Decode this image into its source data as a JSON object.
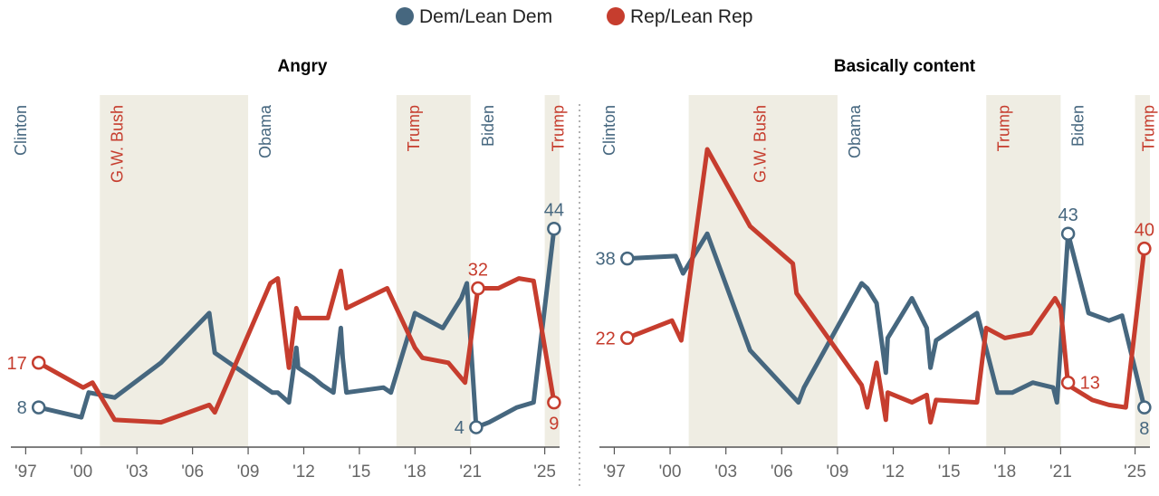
{
  "legend": [
    {
      "name": "Dem/Lean Dem",
      "color": "#46677f"
    },
    {
      "name": "Rep/Lean Rep",
      "color": "#c63d2e"
    }
  ],
  "colors": {
    "dem": "#46677f",
    "rep": "#c63d2e",
    "shade": "#efede3",
    "axis": "#555555",
    "tick_text": "#666666",
    "divider": "#999999"
  },
  "chart_data": [
    {
      "type": "line",
      "title": "Angry",
      "xlabel": "",
      "ylabel": "",
      "xlim": [
        1996.2,
        2025.8
      ],
      "ylim": [
        0,
        60
      ],
      "x_ticks": [
        1997,
        2000,
        2003,
        2006,
        2009,
        2012,
        2015,
        2018,
        2021,
        2025
      ],
      "x_tick_labels": [
        "'97",
        "'00",
        "'03",
        "'06",
        "'09",
        "'12",
        "'15",
        "'18",
        "'21",
        "'25"
      ],
      "shaded_eras": [
        [
          2001,
          2009
        ],
        [
          2017,
          2021
        ],
        [
          2025,
          2025.8
        ]
      ],
      "era_labels": [
        {
          "label": "Clinton",
          "party": "dem",
          "x": 1996.4
        },
        {
          "label": "G.W. Bush",
          "party": "rep",
          "x": 2001.6
        },
        {
          "label": "Obama",
          "party": "dem",
          "x": 2009.6
        },
        {
          "label": "Trump",
          "party": "rep",
          "x": 2017.6
        },
        {
          "label": "Biden",
          "party": "dem",
          "x": 2021.6
        },
        {
          "label": "Trump",
          "party": "rep",
          "x": 2025.4
        }
      ],
      "series": [
        {
          "name": "Dem/Lean Dem",
          "party": "dem",
          "points": [
            [
              1997.7,
              8
            ],
            [
              2000.0,
              6
            ],
            [
              2000.4,
              11
            ],
            [
              2001.8,
              10
            ],
            [
              2004.3,
              17
            ],
            [
              2006.9,
              27
            ],
            [
              2007.2,
              19
            ],
            [
              2010.3,
              11
            ],
            [
              2010.6,
              11
            ],
            [
              2011.2,
              9
            ],
            [
              2011.6,
              20
            ],
            [
              2011.7,
              16
            ],
            [
              2012.5,
              14
            ],
            [
              2013.0,
              12.5
            ],
            [
              2013.6,
              11
            ],
            [
              2014.0,
              24
            ],
            [
              2014.1,
              18
            ],
            [
              2014.3,
              11
            ],
            [
              2016.3,
              12
            ],
            [
              2016.7,
              11
            ],
            [
              2018.0,
              27
            ],
            [
              2019.5,
              24
            ],
            [
              2020.5,
              30
            ],
            [
              2020.8,
              33
            ],
            [
              2021.3,
              4
            ],
            [
              2022.0,
              5
            ],
            [
              2023.5,
              8
            ],
            [
              2024.4,
              9
            ],
            [
              2025.5,
              44
            ]
          ],
          "endpoint_labels": [
            {
              "text": "8",
              "x": 1997.7,
              "y": 8,
              "side": "left"
            },
            {
              "text": "4",
              "x": 2021.3,
              "y": 4,
              "side": "left"
            },
            {
              "text": "44",
              "x": 2025.5,
              "y": 44,
              "side": "above"
            }
          ]
        },
        {
          "name": "Rep/Lean Rep",
          "party": "rep",
          "points": [
            [
              1997.7,
              17
            ],
            [
              2000.1,
              12
            ],
            [
              2000.6,
              13
            ],
            [
              2001.8,
              5.5
            ],
            [
              2004.3,
              5
            ],
            [
              2006.9,
              8.5
            ],
            [
              2007.2,
              7
            ],
            [
              2010.2,
              33
            ],
            [
              2010.6,
              34
            ],
            [
              2011.2,
              16
            ],
            [
              2011.6,
              28
            ],
            [
              2011.8,
              26
            ],
            [
              2013.3,
              26
            ],
            [
              2014.0,
              35.5
            ],
            [
              2014.3,
              28
            ],
            [
              2016.5,
              32
            ],
            [
              2018.0,
              20
            ],
            [
              2018.4,
              18
            ],
            [
              2019.8,
              17
            ],
            [
              2020.7,
              13
            ],
            [
              2021.4,
              32
            ],
            [
              2022.5,
              32
            ],
            [
              2023.6,
              34
            ],
            [
              2024.4,
              33.5
            ],
            [
              2025.5,
              9
            ]
          ],
          "endpoint_labels": [
            {
              "text": "17",
              "x": 1997.7,
              "y": 17,
              "side": "left"
            },
            {
              "text": "32",
              "x": 2021.4,
              "y": 32,
              "side": "above"
            },
            {
              "text": "9",
              "x": 2025.5,
              "y": 9,
              "side": "below"
            }
          ]
        }
      ]
    },
    {
      "type": "line",
      "title": "Basically content",
      "xlabel": "",
      "ylabel": "",
      "xlim": [
        1996.2,
        2025.8
      ],
      "ylim": [
        0,
        60
      ],
      "x_ticks": [
        1997,
        2000,
        2003,
        2006,
        2009,
        2012,
        2015,
        2018,
        2021,
        2025
      ],
      "x_tick_labels": [
        "'97",
        "'00",
        "'03",
        "'06",
        "'09",
        "'12",
        "'15",
        "'18",
        "'21",
        "'25"
      ],
      "shaded_eras": [
        [
          2001,
          2009
        ],
        [
          2017,
          2021
        ],
        [
          2025,
          2025.8
        ]
      ],
      "era_labels": [
        {
          "label": "Clinton",
          "party": "dem",
          "x": 1996.4
        },
        {
          "label": "G.W. Bush",
          "party": "rep",
          "x": 2004.5
        },
        {
          "label": "Obama",
          "party": "dem",
          "x": 2009.6
        },
        {
          "label": "Trump",
          "party": "rep",
          "x": 2017.6
        },
        {
          "label": "Biden",
          "party": "dem",
          "x": 2021.6
        },
        {
          "label": "Trump",
          "party": "rep",
          "x": 2025.4
        }
      ],
      "series": [
        {
          "name": "Dem/Lean Dem",
          "party": "dem",
          "points": [
            [
              1997.7,
              38
            ],
            [
              2000.3,
              38.5
            ],
            [
              2000.7,
              35
            ],
            [
              2002.0,
              43
            ],
            [
              2004.3,
              19.5
            ],
            [
              2006.9,
              9
            ],
            [
              2007.2,
              12
            ],
            [
              2010.3,
              33
            ],
            [
              2010.6,
              32
            ],
            [
              2011.1,
              29
            ],
            [
              2011.6,
              15
            ],
            [
              2011.7,
              22
            ],
            [
              2013.0,
              30
            ],
            [
              2013.8,
              24
            ],
            [
              2014.0,
              16
            ],
            [
              2014.3,
              21.5
            ],
            [
              2016.5,
              27
            ],
            [
              2017.6,
              11
            ],
            [
              2018.4,
              11
            ],
            [
              2019.5,
              13
            ],
            [
              2020.6,
              12
            ],
            [
              2020.8,
              9
            ],
            [
              2021.4,
              43
            ],
            [
              2022.5,
              27
            ],
            [
              2023.6,
              25.5
            ],
            [
              2024.3,
              26.5
            ],
            [
              2025.5,
              8
            ]
          ],
          "endpoint_labels": [
            {
              "text": "38",
              "x": 1997.7,
              "y": 38,
              "side": "left"
            },
            {
              "text": "43",
              "x": 2021.4,
              "y": 43,
              "side": "above"
            },
            {
              "text": "8",
              "x": 2025.5,
              "y": 8,
              "side": "below"
            }
          ]
        },
        {
          "name": "Rep/Lean Rep",
          "party": "rep",
          "points": [
            [
              1997.7,
              22
            ],
            [
              2000.1,
              25.5
            ],
            [
              2000.6,
              21.5
            ],
            [
              2002.0,
              60
            ],
            [
              2004.3,
              44.5
            ],
            [
              2006.6,
              37
            ],
            [
              2006.8,
              31
            ],
            [
              2010.3,
              12.5
            ],
            [
              2010.6,
              8
            ],
            [
              2011.1,
              17
            ],
            [
              2011.6,
              5.5
            ],
            [
              2011.7,
              11
            ],
            [
              2013.0,
              9
            ],
            [
              2013.8,
              10.5
            ],
            [
              2014.0,
              5
            ],
            [
              2014.3,
              9.5
            ],
            [
              2016.5,
              9
            ],
            [
              2017.0,
              24
            ],
            [
              2018.0,
              22
            ],
            [
              2019.4,
              23
            ],
            [
              2020.7,
              30
            ],
            [
              2021.0,
              28
            ],
            [
              2021.4,
              12.5
            ],
            [
              2022.7,
              9.5
            ],
            [
              2023.6,
              8.5
            ],
            [
              2024.5,
              8
            ],
            [
              2025.5,
              40
            ]
          ],
          "endpoint_labels": [
            {
              "text": "22",
              "x": 1997.7,
              "y": 22,
              "side": "left"
            },
            {
              "text": "13",
              "x": 2021.4,
              "y": 13,
              "side": "right"
            },
            {
              "text": "40",
              "x": 2025.5,
              "y": 40,
              "side": "above"
            }
          ]
        }
      ]
    }
  ]
}
